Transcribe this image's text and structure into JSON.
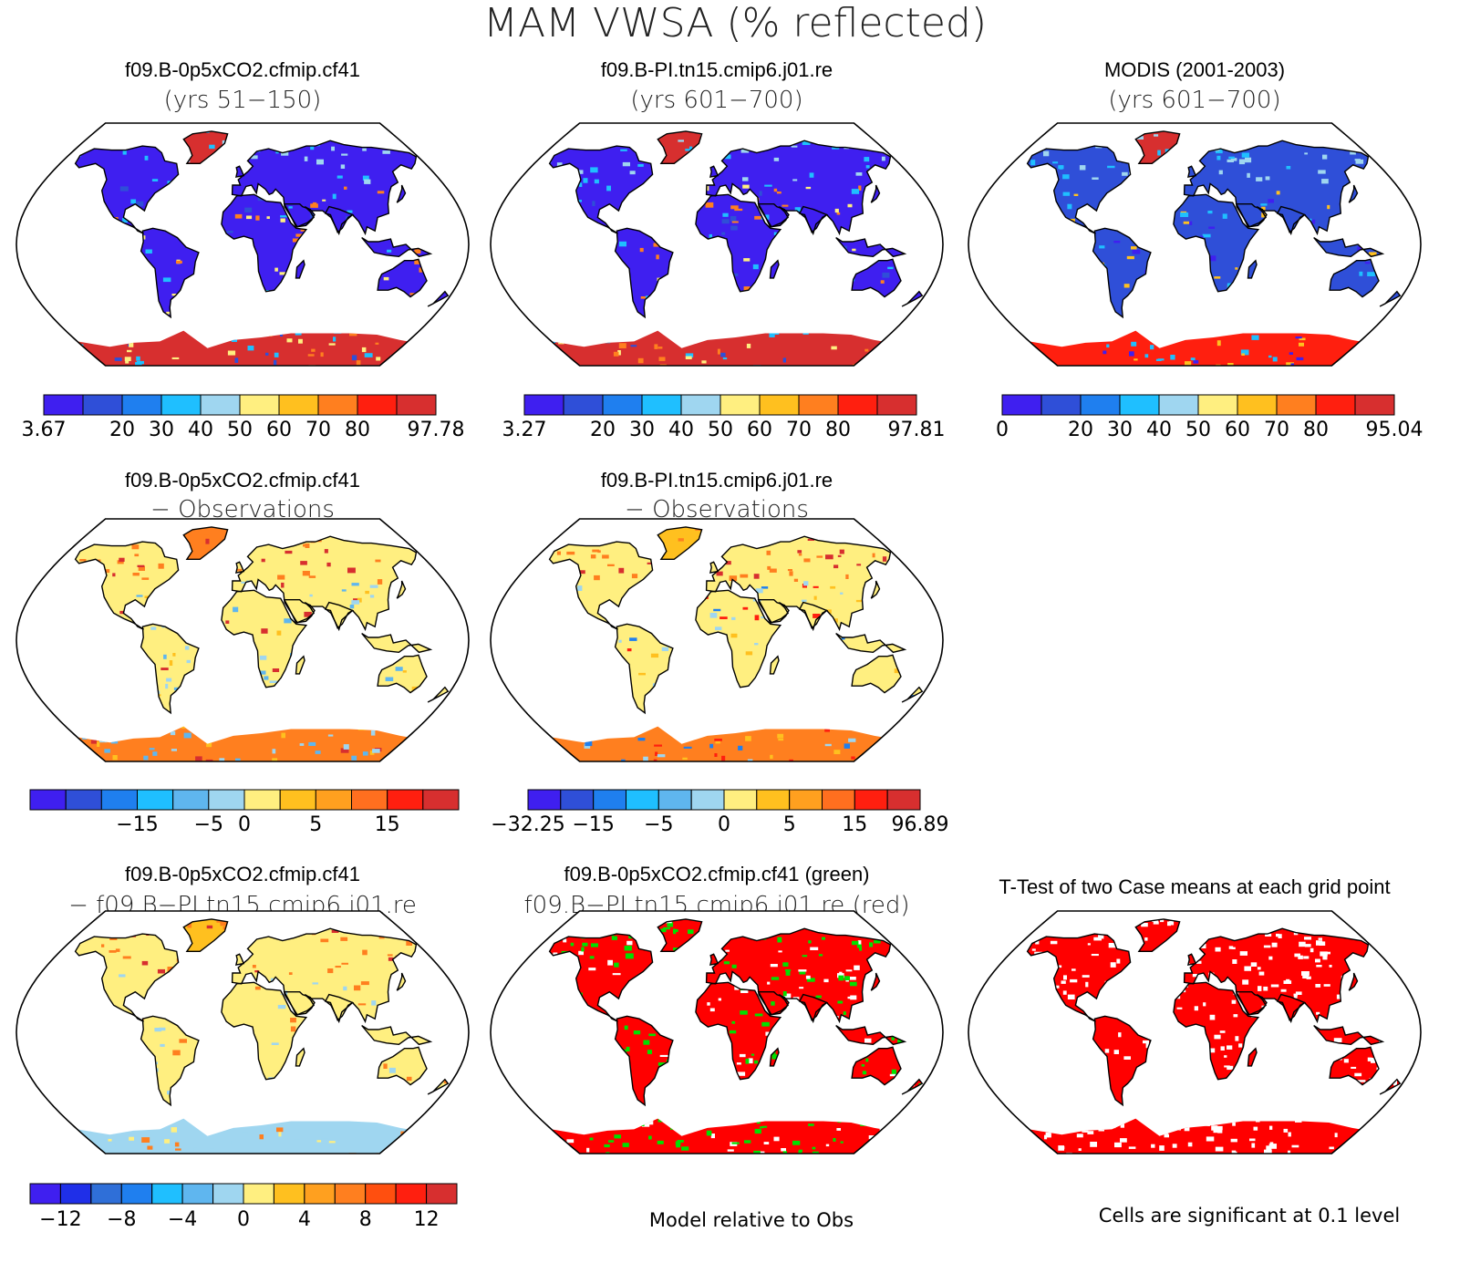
{
  "figure_title": "MAM VWSA (% reflected)",
  "panels": [
    {
      "title1": "f09.B-0p5xCO2.cfmip.cf41",
      "title2": "(yrs 51−150)",
      "scheme": "absolute_a"
    },
    {
      "title1": "f09.B-PI.tn15.cmip6.j01.re",
      "title2": "(yrs 601−700)",
      "scheme": "absolute_b"
    },
    {
      "title1": "MODIS (2001-2003)",
      "title2": "(yrs 601−700)",
      "scheme": "absolute_obs"
    },
    {
      "title1": "f09.B-0p5xCO2.cfmip.cf41",
      "title2": "− Observations",
      "scheme": "diff_obs_a"
    },
    {
      "title1": "f09.B-PI.tn15.cmip6.j01.re",
      "title2": "− Observations",
      "scheme": "diff_obs_b"
    },
    {
      "title1": "f09.B-0p5xCO2.cfmip.cf41",
      "title2": "− f09.B−PI.tn15.cmip6.j01.re",
      "scheme": "diff_cases"
    },
    {
      "title1": "f09.B-0p5xCO2.cfmip.cf41 (green)",
      "title2": "f09.B−PI.tn15.cmip6.j01.re (red)",
      "scheme": "relative"
    },
    {
      "title1": "T-Test of two Case means at each grid point",
      "title2": "",
      "scheme": "ttest"
    }
  ],
  "colorbars": [
    {
      "colors": [
        "#3f1ff0",
        "#2f4fd8",
        "#1f7fef",
        "#1fbfff",
        "#9fd6f0",
        "#ffef80",
        "#ffc01f",
        "#ff7f1f",
        "#ff1f0f",
        "#d72f2f"
      ],
      "labels": [
        "3.67",
        "20",
        "30",
        "40",
        "50",
        "60",
        "70",
        "80",
        "97.78"
      ]
    },
    {
      "colors": [
        "#3f1ff0",
        "#2f4fd8",
        "#1f7fef",
        "#1fbfff",
        "#9fd6f0",
        "#ffef80",
        "#ffc01f",
        "#ff7f1f",
        "#ff1f0f",
        "#d72f2f"
      ],
      "labels": [
        "3.27",
        "20",
        "30",
        "40",
        "50",
        "60",
        "70",
        "80",
        "97.81"
      ]
    },
    {
      "colors": [
        "#3f1ff0",
        "#2f4fd8",
        "#1f7fef",
        "#1fbfff",
        "#9fd6f0",
        "#ffef80",
        "#ffc01f",
        "#ff7f1f",
        "#ff1f0f",
        "#d72f2f"
      ],
      "labels": [
        "0",
        "20",
        "30",
        "40",
        "50",
        "60",
        "70",
        "80",
        "95.04"
      ]
    },
    {
      "colors": [
        "#3f1ff0",
        "#2f4fd8",
        "#1f7fef",
        "#1fbfff",
        "#5fb6ef",
        "#9fd6f0",
        "#ffef80",
        "#ffc01f",
        "#ffa01f",
        "#ff6f1f",
        "#ff1f0f",
        "#d72f2f"
      ],
      "labels": [
        "−15",
        "−5",
        "0",
        "5",
        "15"
      ]
    },
    {
      "colors": [
        "#3f1ff0",
        "#2f4fd8",
        "#1f7fef",
        "#1fbfff",
        "#5fb6ef",
        "#9fd6f0",
        "#ffef80",
        "#ffc01f",
        "#ffa01f",
        "#ff6f1f",
        "#ff1f0f",
        "#d72f2f"
      ],
      "labels": [
        "−32.25",
        "−15",
        "−5",
        "0",
        "5",
        "15",
        "96.89"
      ]
    },
    {
      "colors": [
        "#3f1ff0",
        "#1f2fe8",
        "#2f6fd8",
        "#1f7fef",
        "#1fbfff",
        "#5fb6ef",
        "#9fd6f0",
        "#ffef80",
        "#ffc01f",
        "#ffa01f",
        "#ff7f1f",
        "#ff4f0f",
        "#ff1f0f",
        "#d72f2f"
      ],
      "labels": [
        "−12",
        "−8",
        "−4",
        "0",
        "4",
        "8",
        "12"
      ]
    }
  ],
  "notes": {
    "relative": "Model relative to Obs",
    "significance": "Cells are significant at 0.1 level"
  }
}
